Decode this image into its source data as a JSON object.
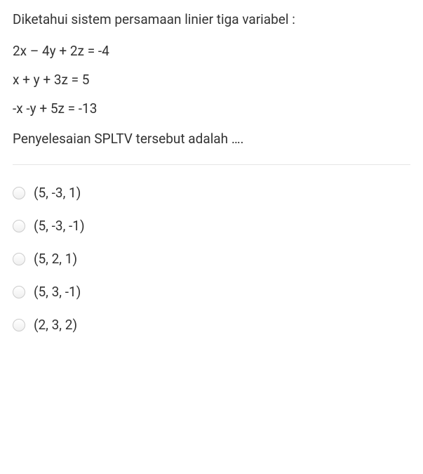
{
  "question": {
    "intro": "Diketahui sistem persamaan linier tiga variabel :",
    "equations": [
      "2x – 4y + 2z = -4",
      "x + y + 3z = 5",
      "-x -y + 5z = -13"
    ],
    "prompt": "Penyelesaian SPLTV tersebut adalah …."
  },
  "options": [
    "(5, -3, 1)",
    "(5, -3, -1)",
    "(5, 2, 1)",
    "(5, 3, -1)",
    "(2, 3, 2)"
  ]
}
